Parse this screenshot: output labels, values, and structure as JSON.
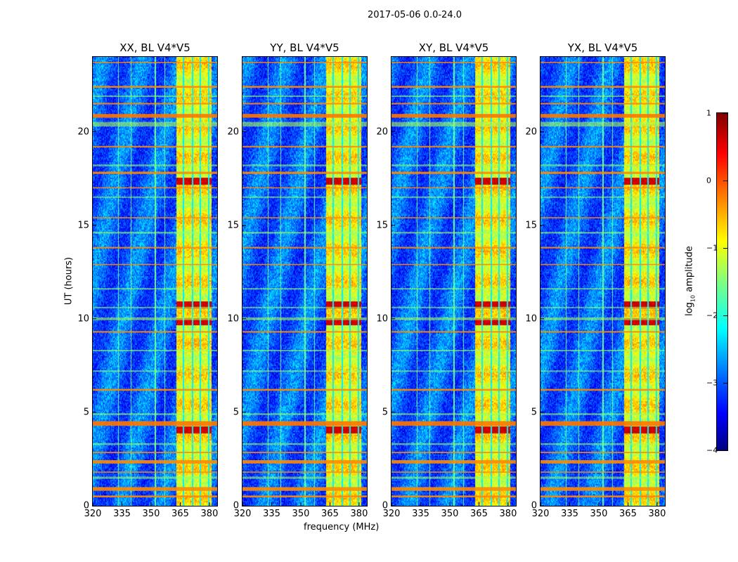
{
  "suptitle": "2017-05-06 0.0-24.0",
  "xlabel": "frequency (MHz)",
  "ylabel": "UT (hours)",
  "chart_data": {
    "type": "heatmap",
    "title": "2017-05-06 0.0-24.0",
    "xlabel": "frequency (MHz)",
    "ylabel": "UT (hours)",
    "xlim": [
      320,
      384
    ],
    "ylim": [
      0,
      24
    ],
    "xticks": [
      "320",
      "335",
      "350",
      "365",
      "380"
    ],
    "xtick_values": [
      320,
      335,
      350,
      365,
      380
    ],
    "yticks": [
      "0",
      "5",
      "10",
      "15",
      "20"
    ],
    "ytick_values": [
      0,
      5,
      10,
      15,
      20
    ],
    "colormap": "jet",
    "colorbar": {
      "label_main": "log",
      "label_sub": "10",
      "label_rest": " amplitude",
      "range": [
        -4,
        1
      ],
      "ticks": [
        "1",
        "0",
        "−1",
        "−2",
        "−3",
        "−4"
      ],
      "tick_values": [
        1,
        0,
        -1,
        -2,
        -3,
        -4
      ]
    },
    "panels": [
      {
        "title": "XX, BL V4*V5"
      },
      {
        "title": "YY, BL V4*V5"
      },
      {
        "title": "XY, BL V4*V5"
      },
      {
        "title": "YX, BL V4*V5"
      }
    ],
    "background_level": -2.9,
    "rfi_band": {
      "freq_range": [
        363,
        381
      ],
      "level": -0.9
    },
    "band_gap_lines_mhz": [
      366.5,
      371,
      375,
      379.5
    ],
    "vertical_lines_mhz": [
      333,
      339.5,
      352,
      357
    ],
    "stripes": [
      {
        "hour": 0.5,
        "width": 0.1,
        "level": -0.3
      },
      {
        "hour": 0.9,
        "width": 0.2,
        "level": -0.3
      },
      {
        "hour": 1.5,
        "width": 0.12,
        "level": -1.4
      },
      {
        "hour": 1.8,
        "width": 0.06,
        "level": -0.3
      },
      {
        "hour": 2.35,
        "width": 0.18,
        "level": -0.3
      },
      {
        "hour": 2.85,
        "width": 0.07,
        "level": -0.3
      },
      {
        "hour": 3.3,
        "width": 0.1,
        "level": -1.4
      },
      {
        "hour": 4.4,
        "width": 0.25,
        "level": -0.2
      },
      {
        "hour": 4.9,
        "width": 0.1,
        "level": -1.4
      },
      {
        "hour": 6.2,
        "width": 0.1,
        "level": -0.3
      },
      {
        "hour": 7.2,
        "width": 0.08,
        "level": -1.4
      },
      {
        "hour": 8.3,
        "width": 0.08,
        "level": -1.4
      },
      {
        "hour": 9.3,
        "width": 0.08,
        "level": -0.3
      },
      {
        "hour": 10.0,
        "width": 0.15,
        "level": -1.3
      },
      {
        "hour": 10.6,
        "width": 0.08,
        "level": -1.4
      },
      {
        "hour": 11.6,
        "width": 0.08,
        "level": -1.4
      },
      {
        "hour": 12.9,
        "width": 0.06,
        "level": -0.3
      },
      {
        "hour": 13.8,
        "width": 0.08,
        "level": -0.3
      },
      {
        "hour": 14.6,
        "width": 0.1,
        "level": -1.4
      },
      {
        "hour": 15.4,
        "width": 0.06,
        "level": -0.3
      },
      {
        "hour": 16.5,
        "width": 0.08,
        "level": -1.4
      },
      {
        "hour": 17.0,
        "width": 0.06,
        "level": -0.3
      },
      {
        "hour": 17.8,
        "width": 0.12,
        "level": -0.3
      },
      {
        "hour": 18.2,
        "width": 0.1,
        "level": -1.4
      },
      {
        "hour": 19.2,
        "width": 0.08,
        "level": -0.3
      },
      {
        "hour": 20.4,
        "width": 0.25,
        "level": -1.3
      },
      {
        "hour": 20.85,
        "width": 0.2,
        "level": -0.2
      },
      {
        "hour": 21.5,
        "width": 0.08,
        "level": -0.3
      },
      {
        "hour": 21.9,
        "width": 0.08,
        "level": -1.4
      },
      {
        "hour": 22.4,
        "width": 0.1,
        "level": -0.3
      },
      {
        "hour": 23.7,
        "width": 0.06,
        "level": -0.3
      }
    ],
    "hot_spots_hours": [
      4.1,
      9.9,
      10.8,
      17.4
    ],
    "hot_level": 0.6
  }
}
